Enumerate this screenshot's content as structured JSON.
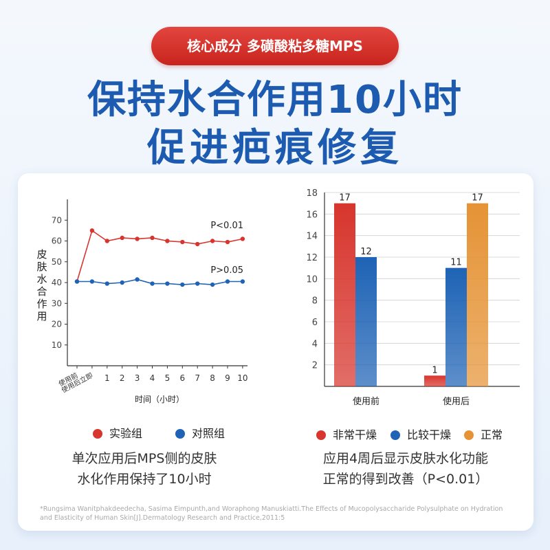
{
  "badge": "核心成分 多磺酸粘多糖MPS",
  "headline_line1": "保持水合作用10小时",
  "headline_line2": "促进疤痕修复",
  "colors": {
    "red": "#d7352d",
    "blue": "#1e63b5",
    "orange": "#e59335",
    "headline": "#1c5bb0"
  },
  "chart_data": [
    {
      "type": "line",
      "ylabel": "皮肤水合作用",
      "xlabel": "时间（小时）",
      "x_tick_labels": [
        "使用前",
        "使用后立即",
        "1",
        "2",
        "3",
        "4",
        "5",
        "6",
        "7",
        "8",
        "9",
        "10"
      ],
      "ylim": [
        0,
        80
      ],
      "y_ticks": [
        10,
        20,
        30,
        40,
        50,
        60,
        70
      ],
      "series": [
        {
          "name": "实验组",
          "color": "#d7352d",
          "values": [
            40.5,
            65,
            60,
            61.5,
            61,
            61.5,
            60,
            59.5,
            58.5,
            60,
            59.5,
            61
          ]
        },
        {
          "name": "对照组",
          "color": "#1e63b5",
          "values": [
            40.5,
            40.5,
            39.5,
            40,
            41.5,
            39.5,
            39.5,
            39,
            39.5,
            39,
            40.5,
            40.5
          ]
        }
      ],
      "annotations": [
        "P<0.01",
        "P>0.05"
      ],
      "legend": "bottom",
      "grid": false
    },
    {
      "type": "bar",
      "categories": [
        "使用前",
        "使用后"
      ],
      "ylim": [
        0,
        18
      ],
      "y_ticks": [
        2,
        4,
        6,
        8,
        10,
        12,
        14,
        16,
        18
      ],
      "series": [
        {
          "name": "非常干燥",
          "color": "#d7352d",
          "values": [
            17,
            1
          ]
        },
        {
          "name": "比较干燥",
          "color": "#1e63b5",
          "values": [
            12,
            11
          ]
        },
        {
          "name": "正常",
          "color": "#e59335",
          "values": [
            0,
            17
          ]
        }
      ],
      "legend": "bottom",
      "grid": true
    }
  ],
  "caption_left": [
    "单次应用后MPS侧的皮肤",
    "水化作用保持了10小时"
  ],
  "caption_right": [
    "应用4周后显示皮肤水化功能",
    "正常的得到改善（P<0.01）"
  ],
  "footnote": "*Rungsima Wanitphakdeedecha, Sasima Eimpunth,and Woraphong Manuskiatti.The Effects of Mucopolysaccharide Polysulphate on Hydration and Elasticity of Human Skin[J].Dermatology Research and Practice,2011:5"
}
